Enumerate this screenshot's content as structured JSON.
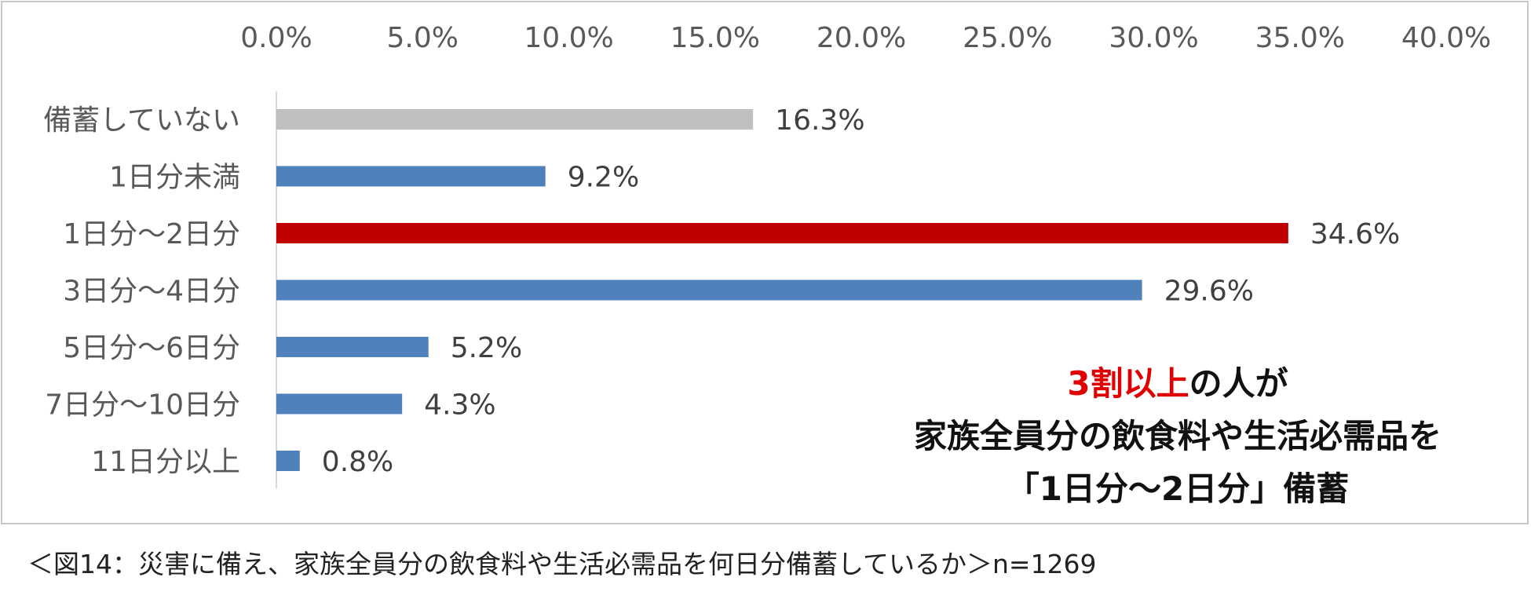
{
  "chart_data": {
    "type": "bar",
    "orientation": "horizontal",
    "categories": [
      "備蓄していない",
      "1日分未満",
      "1日分～2日分",
      "3日分～4日分",
      "5日分～6日分",
      "7日分～10日分",
      "11日分以上"
    ],
    "values": [
      16.3,
      9.2,
      34.6,
      29.6,
      5.2,
      4.3,
      0.8
    ],
    "value_labels": [
      "16.3%",
      "9.2%",
      "34.6%",
      "29.6%",
      "5.2%",
      "4.3%",
      "0.8%"
    ],
    "bar_colors": [
      "#bfbfbf",
      "#4f81bd",
      "#c00000",
      "#4f81bd",
      "#4f81bd",
      "#4f81bd",
      "#4f81bd"
    ],
    "xlim": [
      0,
      40
    ],
    "x_ticks": [
      "0.0%",
      "5.0%",
      "10.0%",
      "15.0%",
      "20.0%",
      "25.0%",
      "30.0%",
      "35.0%",
      "40.0%"
    ],
    "x_axis_position": "top",
    "grid": false
  },
  "annotation": {
    "highlight": "3割以上",
    "line1_rest": "の人が",
    "line2": "家族全員分の飲食料や生活必需品を",
    "line3": "「1日分～2日分」備蓄",
    "highlight_color": "#e00000"
  },
  "caption": "＜図14：災害に備え、家族全員分の飲食料や生活必需品を何日分備蓄しているか＞n=1269"
}
